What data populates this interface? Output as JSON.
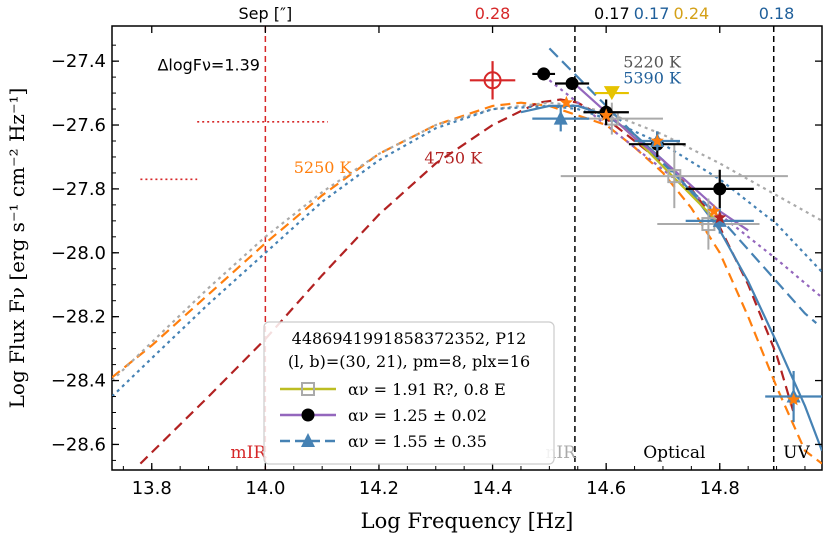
{
  "chart_data": {
    "type": "scatter",
    "xlabel": "Log Frequency [Hz]",
    "ylabel": "Log Flux Fν [erg s⁻¹ cm⁻² Hz⁻¹]",
    "xlim": [
      13.73,
      14.98
    ],
    "ylim": [
      -28.68,
      -27.29
    ],
    "xticks": [
      13.8,
      14.0,
      14.2,
      14.4,
      14.6,
      14.8
    ],
    "yticks": [
      -28.6,
      -28.4,
      -28.2,
      -28.0,
      -27.8,
      -27.6,
      -27.4
    ],
    "xtick_labels": [
      "13.8",
      "14.0",
      "14.2",
      "14.4",
      "14.6",
      "14.8"
    ],
    "ytick_labels": [
      "−28.6",
      "−28.4",
      "−28.2",
      "−28.0",
      "−27.8",
      "−27.6",
      "−27.4"
    ],
    "colors": {
      "red": "#d62728",
      "darkred": "#b22222",
      "orange": "#ff7f0e",
      "gray": "#aaaaaa",
      "olive": "#bcbd22",
      "purple": "#9467bd",
      "blue": "#4682b4",
      "darkblue": "#1f5f9a",
      "yellow": "#e6c300",
      "gold": "#d4a017",
      "black": "#000000"
    },
    "top_annotations": [
      {
        "text": "Sep [″]",
        "x": 14.0,
        "color": "#000000"
      },
      {
        "text": "0.28",
        "x": 14.4,
        "color": "#d62728"
      },
      {
        "text": "0.17",
        "x": 14.61,
        "color": "#000000"
      },
      {
        "text": "0.17",
        "x": 14.68,
        "color": "#1f5f9a"
      },
      {
        "text": "0.24",
        "x": 14.75,
        "color": "#d4a017"
      },
      {
        "text": "0.18",
        "x": 14.9,
        "color": "#1f5f9a"
      }
    ],
    "region_labels": [
      {
        "text": "mIR",
        "x": 13.97,
        "color": "#d62728"
      },
      {
        "text": "nIR",
        "x": 14.52,
        "color": "#aaaaaa"
      },
      {
        "text": "Optical",
        "x": 14.72,
        "color": "#000000"
      },
      {
        "text": "UV",
        "x": 14.935,
        "color": "#000000"
      }
    ],
    "band_dividers": [
      {
        "x": 14.0,
        "color": "#d62728"
      },
      {
        "x": 14.545,
        "color": "#000000"
      },
      {
        "x": 14.895,
        "color": "#000000"
      }
    ],
    "text_annotations": [
      {
        "text": "ΔlogFν=1.39",
        "x": 13.81,
        "y": -27.43,
        "color": "#000000"
      },
      {
        "text": "5250 K",
        "x": 14.05,
        "y": -27.75,
        "color": "#ff7f0e"
      },
      {
        "text": "4750 K",
        "x": 14.28,
        "y": -27.72,
        "color": "#b22222"
      },
      {
        "text": "5220 K",
        "x": 14.63,
        "y": -27.42,
        "color": "#555555"
      },
      {
        "text": "5390 K",
        "x": 14.63,
        "y": -27.47,
        "color": "#1f5f9a"
      }
    ],
    "curves": [
      {
        "name": "bb 5250 K",
        "color": "#ff7f0e",
        "dash": "10,6",
        "x": [
          13.73,
          13.8,
          13.9,
          14.0,
          14.1,
          14.2,
          14.3,
          14.4,
          14.45,
          14.5,
          14.55,
          14.6,
          14.65,
          14.7,
          14.75,
          14.8,
          14.85,
          14.9,
          14.95,
          14.98
        ],
        "y": [
          -28.39,
          -28.29,
          -28.13,
          -27.97,
          -27.82,
          -27.69,
          -27.6,
          -27.54,
          -27.53,
          -27.54,
          -27.57,
          -27.6,
          -27.67,
          -27.75,
          -27.86,
          -28.0,
          -28.2,
          -28.42,
          -28.62,
          -28.66
        ]
      },
      {
        "name": "bb 4750 K",
        "color": "#b22222",
        "dash": "10,6",
        "x": [
          13.78,
          13.9,
          14.0,
          14.1,
          14.2,
          14.3,
          14.4,
          14.48,
          14.52,
          14.55,
          14.6,
          14.65,
          14.7,
          14.75,
          14.8,
          14.85,
          14.9,
          14.93
        ],
        "y": [
          -28.66,
          -28.45,
          -28.27,
          -28.07,
          -27.88,
          -27.72,
          -27.6,
          -27.53,
          -27.52,
          -27.53,
          -27.58,
          -27.65,
          -27.72,
          -27.8,
          -27.92,
          -28.1,
          -28.32,
          -28.5
        ]
      },
      {
        "name": "gray dotted",
        "color": "#aaaaaa",
        "dash": "3,4",
        "x": [
          13.73,
          13.8,
          13.9,
          14.0,
          14.1,
          14.2,
          14.3,
          14.4,
          14.5,
          14.55,
          14.6,
          14.7,
          14.8,
          14.9,
          14.98
        ],
        "y": [
          -28.4,
          -28.28,
          -28.11,
          -27.95,
          -27.81,
          -27.69,
          -27.6,
          -27.55,
          -27.53,
          -27.54,
          -27.56,
          -27.63,
          -27.72,
          -27.82,
          -27.9
        ]
      },
      {
        "name": "blue dotted",
        "color": "#4682b4",
        "dash": "3,4",
        "x": [
          13.73,
          13.8,
          13.9,
          14.0,
          14.1,
          14.2,
          14.3,
          14.4,
          14.5,
          14.55,
          14.6,
          14.7,
          14.8,
          14.9,
          14.98
        ],
        "y": [
          -28.45,
          -28.33,
          -28.16,
          -28.0,
          -27.84,
          -27.71,
          -27.61,
          -27.55,
          -27.54,
          -27.55,
          -27.58,
          -27.66,
          -27.77,
          -27.91,
          -28.06
        ]
      },
      {
        "name": "purple dotted",
        "color": "#9467bd",
        "dash": "3,4",
        "x": [
          14.5,
          14.6,
          14.7,
          14.8,
          14.9,
          14.98
        ],
        "y": [
          -27.46,
          -27.6,
          -27.74,
          -27.88,
          -28.02,
          -28.14
        ]
      },
      {
        "name": "blue solid",
        "color": "#4682b4",
        "dash": "",
        "x": [
          14.45,
          14.5,
          14.55,
          14.6,
          14.65,
          14.7,
          14.75,
          14.8,
          14.85,
          14.9,
          14.95,
          14.98
        ],
        "y": [
          -27.56,
          -27.54,
          -27.54,
          -27.57,
          -27.63,
          -27.71,
          -27.81,
          -27.93,
          -28.09,
          -28.28,
          -28.48,
          -28.62
        ]
      },
      {
        "name": "blue dashed fit",
        "color": "#4682b4",
        "dash": "12,6",
        "x": [
          14.5,
          14.6,
          14.7,
          14.8,
          14.85,
          14.9,
          14.95,
          14.97
        ],
        "y": [
          -27.36,
          -27.54,
          -27.72,
          -27.89,
          -27.99,
          -28.09,
          -28.19,
          -28.22
        ]
      },
      {
        "name": "olive fit",
        "color": "#bcbd22",
        "dash": "",
        "x": [
          14.6,
          14.65,
          14.7,
          14.75,
          14.8
        ],
        "y": [
          -27.56,
          -27.64,
          -27.73,
          -27.82,
          -27.91
        ]
      },
      {
        "name": "purple fit",
        "color": "#9467bd",
        "dash": "",
        "x": [
          14.55,
          14.6,
          14.65,
          14.7,
          14.75,
          14.8,
          14.85
        ],
        "y": [
          -27.48,
          -27.56,
          -27.64,
          -27.71,
          -27.79,
          -27.87,
          -27.93
        ]
      }
    ],
    "dotted_segments": [
      {
        "x": [
          13.88,
          14.11
        ],
        "y": [
          -27.59,
          -27.59
        ],
        "color": "#d62728"
      },
      {
        "x": [
          13.78,
          13.88
        ],
        "y": [
          -27.77,
          -27.77
        ],
        "color": "#d62728"
      }
    ],
    "points": [
      {
        "series": "gray squares",
        "x": 14.61,
        "y": -27.58,
        "xerr": 0.09,
        "yerr": 0.05,
        "color": "#aaaaaa",
        "marker": "square-open"
      },
      {
        "series": "gray squares",
        "x": 14.72,
        "y": -27.76,
        "xerr": 0.2,
        "yerr": 0.1,
        "color": "#aaaaaa",
        "marker": "square-open"
      },
      {
        "series": "gray squares",
        "x": 14.78,
        "y": -27.91,
        "xerr": 0.09,
        "yerr": 0.08,
        "color": "#aaaaaa",
        "marker": "square-open"
      },
      {
        "series": "black circles",
        "x": 14.49,
        "y": -27.44,
        "xerr": 0.02,
        "yerr": 0.02,
        "color": "#000000",
        "marker": "circle"
      },
      {
        "series": "black circles",
        "x": 14.54,
        "y": -27.47,
        "xerr": 0.03,
        "yerr": 0.02,
        "color": "#000000",
        "marker": "circle"
      },
      {
        "series": "black circles",
        "x": 14.6,
        "y": -27.56,
        "xerr": 0.04,
        "yerr": 0.04,
        "color": "#000000",
        "marker": "circle"
      },
      {
        "series": "black circles",
        "x": 14.69,
        "y": -27.66,
        "xerr": 0.05,
        "yerr": 0.04,
        "color": "#000000",
        "marker": "circle"
      },
      {
        "series": "black circles",
        "x": 14.8,
        "y": -27.8,
        "xerr": 0.06,
        "yerr": 0.06,
        "color": "#000000",
        "marker": "circle"
      },
      {
        "series": "blue triangles",
        "x": 14.52,
        "y": -27.58,
        "xerr": 0.05,
        "yerr": 0.04,
        "color": "#4682b4",
        "marker": "triangle"
      },
      {
        "series": "blue triangles",
        "x": 14.69,
        "y": -27.65,
        "xerr": 0.04,
        "yerr": 0.03,
        "color": "#4682b4",
        "marker": "triangle"
      },
      {
        "series": "blue triangles",
        "x": 14.8,
        "y": -27.9,
        "xerr": 0.06,
        "yerr": 0.04,
        "color": "#4682b4",
        "marker": "triangle"
      },
      {
        "series": "blue triangles",
        "x": 14.93,
        "y": -28.45,
        "xerr": 0.05,
        "yerr": 0.08,
        "color": "#4682b4",
        "marker": "triangle"
      },
      {
        "series": "red open circle",
        "x": 14.4,
        "y": -27.46,
        "xerr": 0.04,
        "yerr": 0.06,
        "color": "#d62728",
        "marker": "circle-open"
      },
      {
        "series": "yellow triangle",
        "x": 14.61,
        "y": -27.5,
        "xerr": 0.03,
        "yerr": 0.0,
        "color": "#e6c300",
        "marker": "triangle-down"
      },
      {
        "series": "orange stars",
        "x": 14.53,
        "y": -27.53,
        "xerr": 0,
        "yerr": 0,
        "color": "#ff7f0e",
        "marker": "star"
      },
      {
        "series": "orange stars",
        "x": 14.6,
        "y": -27.57,
        "xerr": 0,
        "yerr": 0,
        "color": "#ff7f0e",
        "marker": "star"
      },
      {
        "series": "orange stars",
        "x": 14.69,
        "y": -27.65,
        "xerr": 0,
        "yerr": 0,
        "color": "#ff7f0e",
        "marker": "star"
      },
      {
        "series": "orange stars",
        "x": 14.79,
        "y": -27.87,
        "xerr": 0,
        "yerr": 0,
        "color": "#ff7f0e",
        "marker": "star"
      },
      {
        "series": "orange stars",
        "x": 14.8,
        "y": -27.89,
        "xerr": 0,
        "yerr": 0,
        "color": "#b22222",
        "marker": "star"
      },
      {
        "series": "orange stars",
        "x": 14.93,
        "y": -28.46,
        "xerr": 0,
        "yerr": 0,
        "color": "#ff7f0e",
        "marker": "star"
      }
    ],
    "legend": {
      "title_line1": "4486941991858372352, P12",
      "title_line2": "(l, b)=(30, 21), pm=8, plx=16",
      "entries": [
        {
          "label": "αν = 1.91   R?, 0.8 E",
          "color": "#bcbd22",
          "marker": "square-open",
          "markerColor": "#aaaaaa",
          "dash": ""
        },
        {
          "label": "αν = 1.25 ± 0.02",
          "color": "#9467bd",
          "marker": "circle",
          "markerColor": "#000000",
          "dash": ""
        },
        {
          "label": "αν = 1.55 ± 0.35",
          "color": "#4682b4",
          "marker": "triangle",
          "markerColor": "#4682b4",
          "dash": "10,5"
        }
      ]
    }
  }
}
